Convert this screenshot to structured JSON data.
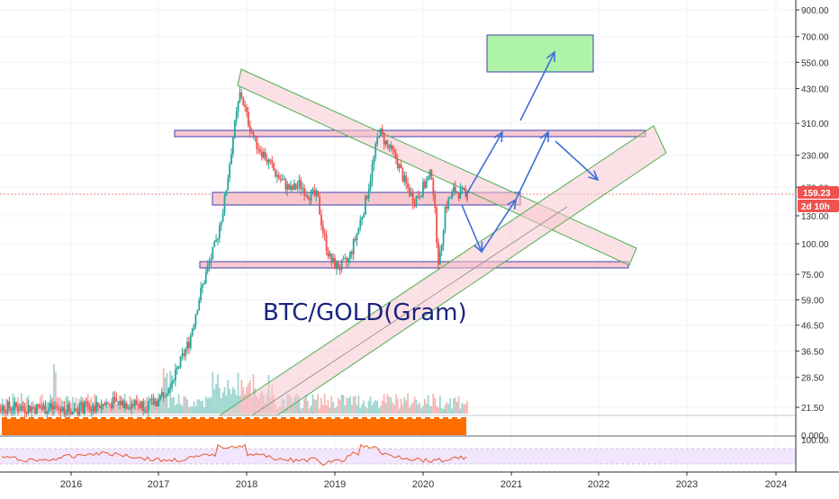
{
  "chart_data": {
    "type": "candlestick",
    "title": "BTC/GOLD(Gram)",
    "price_axis": {
      "scale": "log",
      "ticks": [
        "900.00",
        "700.00",
        "550.00",
        "430.00",
        "310.00",
        "230.00",
        "170.00",
        "130.00",
        "100.00",
        "75.00",
        "59.00",
        "46.50",
        "36.50",
        "28.50",
        "21.50"
      ],
      "tick_values": [
        900,
        700,
        550,
        430,
        310,
        230,
        170,
        130,
        100,
        75,
        59,
        46.5,
        36.5,
        28.5,
        21.5
      ]
    },
    "x_axis": {
      "ticks": [
        "2016",
        "2017",
        "2018",
        "2019",
        "2020",
        "2021",
        "2022",
        "2023",
        "2024"
      ]
    },
    "current_price": "159.23",
    "countdown": "2d 10h",
    "indicator_axis": {
      "ticks": [
        "0.000",
        "100.00"
      ]
    },
    "annotations": {
      "horizontal_zones": [
        "resistance ~285",
        "mid ~150",
        "support ~80"
      ],
      "projection_arrows": "blue path",
      "target_box": "green"
    },
    "colors": {
      "up": "#26a69a",
      "down": "#ef5350",
      "price_badge": "#ef5350",
      "zone_fill": "#f8c8cf",
      "zone_border": "#3f3fb2",
      "channel_border": "#4caf50",
      "arrow": "#3b6fd8",
      "target_fill": "#aef3a8",
      "volume_up": "#9fd6d0",
      "volume_down": "#f7b6b6",
      "osc_bar": "#ff6d00",
      "rsi_line": "#e8572b",
      "rsi_band": "#f2e6ff"
    }
  }
}
